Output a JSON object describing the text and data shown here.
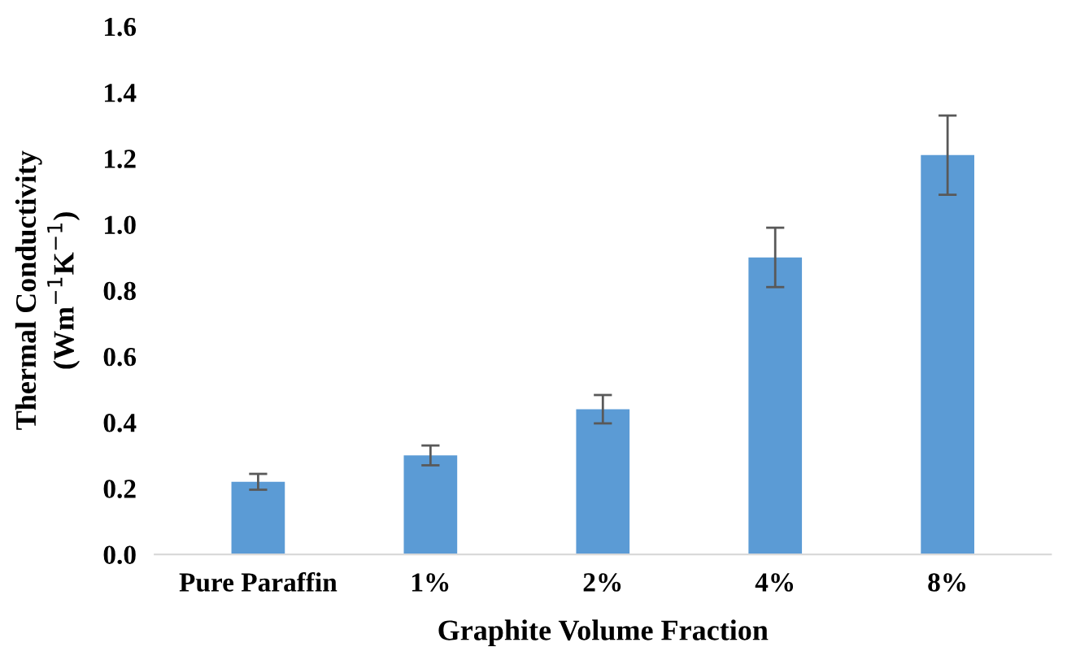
{
  "chart_data": {
    "type": "bar",
    "xlabel": "Graphite Volume Fraction",
    "ylabel": "Thermal Conductivity\n(Wm$^{−1}$K$^{−1}$)",
    "categories": [
      "Pure Paraffin",
      "1%",
      "2%",
      "4%",
      "8%"
    ],
    "values": [
      0.22,
      0.3,
      0.44,
      0.9,
      1.21
    ],
    "errors": [
      0.024,
      0.03,
      0.043,
      0.09,
      0.12
    ],
    "color": "#5b9bd5",
    "ylim": [
      0,
      1.6
    ],
    "yticks": [
      {
        "value": 0,
        "label": "0.0"
      },
      {
        "value": 0.2,
        "label": "0.2"
      },
      {
        "value": 0.4,
        "label": "0.4"
      },
      {
        "value": 0.6,
        "label": "0.6"
      },
      {
        "value": 0.8,
        "label": "0.8"
      },
      {
        "value": 1.0,
        "label": "1.0"
      },
      {
        "value": 1.2,
        "label": "1.2"
      },
      {
        "value": 1.4,
        "label": "1.4"
      },
      {
        "value": 1.6,
        "label": "1.6"
      }
    ],
    "grid": false,
    "legend": false
  }
}
